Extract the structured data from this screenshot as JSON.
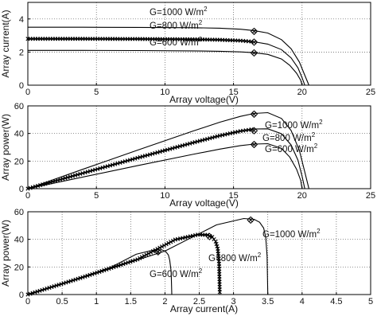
{
  "chart_data": [
    {
      "type": "line",
      "xlabel": "Array voltage(V)",
      "ylabel": "Array current(A)",
      "xlim": [
        0,
        25
      ],
      "ylim": [
        0,
        5
      ],
      "xticks": [
        "0",
        "5",
        "10",
        "15",
        "20",
        "25"
      ],
      "yticks": [
        "0",
        "2",
        "4"
      ],
      "grid": true,
      "series": [
        {
          "name": "G=1000 W/m²",
          "x": [
            0,
            4,
            8,
            12,
            14,
            15.5,
            16.5,
            17.5,
            18.5,
            19.2,
            19.8,
            20.2,
            20.5
          ],
          "y": [
            3.5,
            3.5,
            3.49,
            3.47,
            3.44,
            3.38,
            3.3,
            3.15,
            2.75,
            2.2,
            1.4,
            0.6,
            0
          ]
        },
        {
          "name": "G=800 W/m²",
          "x": [
            0,
            4,
            8,
            12,
            14,
            15.5,
            16.5,
            17.5,
            18.5,
            19.2,
            19.7,
            20.0,
            20.2
          ],
          "y": [
            2.8,
            2.8,
            2.79,
            2.77,
            2.74,
            2.69,
            2.62,
            2.48,
            2.15,
            1.65,
            1.05,
            0.45,
            0
          ]
        },
        {
          "name": "G=600 W/m²",
          "x": [
            0,
            4,
            8,
            12,
            14,
            15.5,
            16.5,
            17.5,
            18.5,
            19.1,
            19.6,
            19.9,
            20.0
          ],
          "y": [
            2.1,
            2.1,
            2.09,
            2.07,
            2.05,
            2.01,
            1.96,
            1.86,
            1.58,
            1.2,
            0.72,
            0.3,
            0
          ]
        }
      ],
      "mpp_marker_series": "G=800 W/m²",
      "mpp_points": [
        [
          16.5,
          3.25
        ],
        [
          16.5,
          2.6
        ],
        [
          16.5,
          1.95
        ]
      ]
    },
    {
      "type": "line",
      "xlabel": "Array voltage(V)",
      "ylabel": "Array power(W)",
      "xlim": [
        0,
        25
      ],
      "ylim": [
        0,
        60
      ],
      "xticks": [
        "0",
        "5",
        "10",
        "15",
        "20",
        "25"
      ],
      "yticks": [
        "0",
        "20",
        "40",
        "60"
      ],
      "grid": true,
      "series": [
        {
          "name": "G=1000 W/m²",
          "x": [
            0,
            4,
            8,
            12,
            14,
            15.5,
            16.5,
            17.5,
            18.5,
            19.2,
            19.8,
            20.2,
            20.5
          ],
          "y": [
            0,
            14,
            27.9,
            41.6,
            48.2,
            52.4,
            54.5,
            55.1,
            50.9,
            42.2,
            27.7,
            12.1,
            0
          ]
        },
        {
          "name": "G=800 W/m²",
          "x": [
            0,
            4,
            8,
            12,
            14,
            15.5,
            16.5,
            17.5,
            18.5,
            19.2,
            19.7,
            20.0,
            20.2
          ],
          "y": [
            0,
            11.2,
            22.3,
            33.2,
            38.4,
            41.7,
            43.2,
            43.4,
            39.8,
            31.7,
            20.7,
            9,
            0
          ]
        },
        {
          "name": "G=600 W/m²",
          "x": [
            0,
            4,
            8,
            12,
            14,
            15.5,
            16.5,
            17.5,
            18.5,
            19.1,
            19.6,
            19.9,
            20.0
          ],
          "y": [
            0,
            8.4,
            16.7,
            24.8,
            28.7,
            31.2,
            32.3,
            32.6,
            29.2,
            22.9,
            14.1,
            6,
            0
          ]
        }
      ],
      "mpp_marker_series": "G=800 W/m²",
      "mpp_points": [
        [
          16.5,
          54
        ],
        [
          16.5,
          42
        ],
        [
          16.5,
          32
        ]
      ]
    },
    {
      "type": "line",
      "xlabel": "Array current(A)",
      "ylabel": "Array power(W)",
      "xlim": [
        0,
        5
      ],
      "ylim": [
        0,
        60
      ],
      "xticks": [
        "0",
        "0.5",
        "1",
        "1.5",
        "2",
        "2.5",
        "3",
        "3.5",
        "4",
        "4.5",
        "5"
      ],
      "yticks": [
        "0",
        "20",
        "40",
        "60"
      ],
      "grid": true,
      "series": [
        {
          "name": "G=1000 W/m²",
          "x": [
            0,
            1.0,
            2.0,
            2.75,
            3.15,
            3.3,
            3.38,
            3.44,
            3.47,
            3.49,
            3.5
          ],
          "y": [
            0,
            15.5,
            31.5,
            50.5,
            55.1,
            54.5,
            52.4,
            48.2,
            41.6,
            27.9,
            0
          ]
        },
        {
          "name": "G=800 W/m²",
          "x": [
            0,
            0.8,
            1.6,
            2.15,
            2.48,
            2.62,
            2.69,
            2.74,
            2.77,
            2.79,
            2.8
          ],
          "y": [
            0,
            12.5,
            25.5,
            39.8,
            43.4,
            43.2,
            41.7,
            38.4,
            33.2,
            22.3,
            0
          ]
        },
        {
          "name": "G=600 W/m²",
          "x": [
            0,
            0.6,
            1.2,
            1.58,
            1.86,
            1.96,
            2.01,
            2.05,
            2.07,
            2.09,
            2.1
          ],
          "y": [
            0,
            9.5,
            19.5,
            29.2,
            32.6,
            32.3,
            31.2,
            28.7,
            24.8,
            16.7,
            0
          ]
        }
      ],
      "mpp_marker_series": "G=800 W/m²",
      "mpp_points": [
        [
          3.25,
          54
        ],
        [
          2.65,
          42
        ],
        [
          1.9,
          31
        ]
      ]
    }
  ]
}
